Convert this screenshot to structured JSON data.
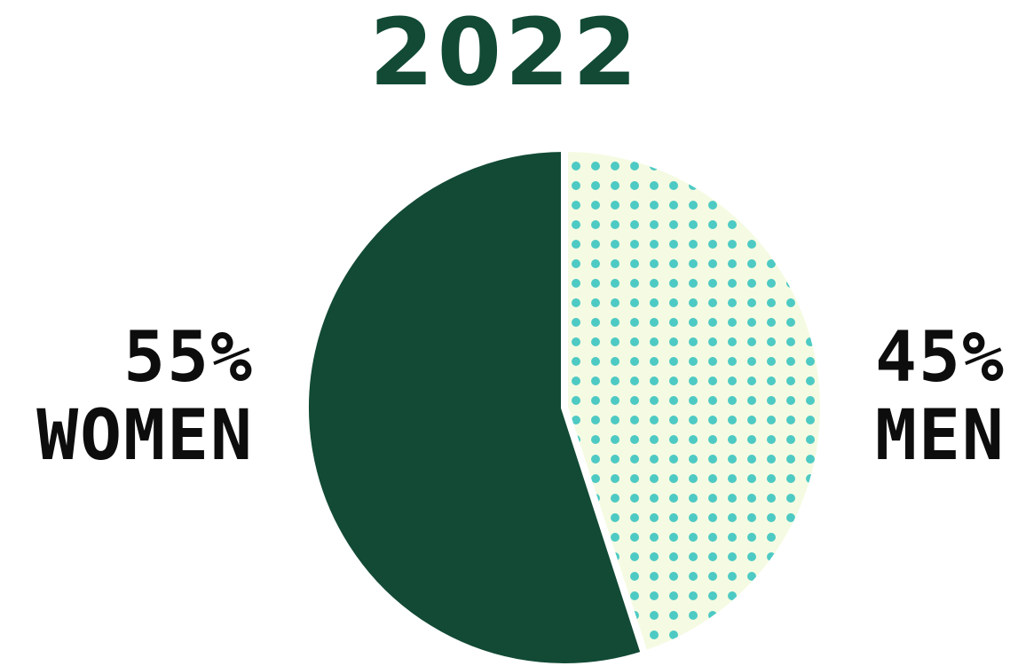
{
  "chart_data": {
    "type": "pie",
    "title": "2022",
    "slices": [
      {
        "label": "WOMEN",
        "value": 55,
        "display": "55%",
        "color": "#124a35",
        "pattern": "solid"
      },
      {
        "label": "MEN",
        "value": 45,
        "display": "45%",
        "color": "#4ecac4",
        "pattern": "dots",
        "background": "#f5fbe2"
      }
    ]
  }
}
